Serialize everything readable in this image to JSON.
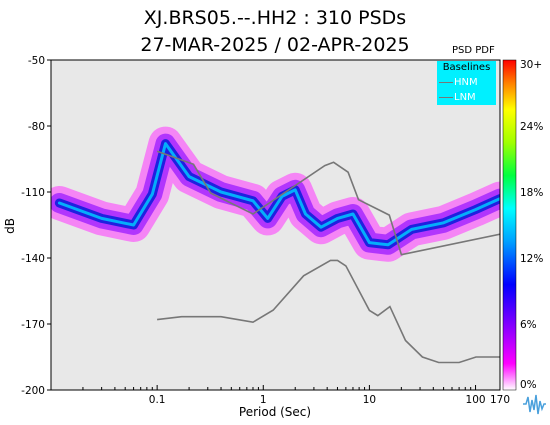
{
  "title_line1": "XJ.BRS05.--.HH2 : 310 PSDs",
  "title_line2": "27-MAR-2025 / 02-APR-2025",
  "colorbar": {
    "title": "PSD PDF",
    "ticks": [
      "30+",
      "24%",
      "18%",
      "12%",
      "6%",
      "0%"
    ]
  },
  "legend": {
    "title": "Baselines",
    "items": [
      "HNM",
      "LNM"
    ],
    "background": "#00f0ff",
    "line_color": "#777777"
  },
  "chart_data": {
    "type": "heatmap",
    "xlabel": "Period (Sec)",
    "ylabel": "dB",
    "x_scale": "log",
    "xlim": [
      0.01,
      170
    ],
    "ylim": [
      -200,
      -50
    ],
    "x_ticks": [
      0.1,
      1,
      10,
      100,
      170
    ],
    "x_tick_labels": [
      "0.1",
      "1",
      "10",
      "100",
      "170"
    ],
    "y_ticks": [
      -200,
      -170,
      -140,
      -110,
      -80,
      -50
    ],
    "y_tick_labels": [
      "-200",
      "-170",
      "-140",
      "-110",
      "-80",
      "-50"
    ],
    "grid": false,
    "legend_position": "top-right",
    "background_color": "#e8e8e8",
    "series": [
      {
        "name": "HNM",
        "x": [
          0.1,
          0.22,
          0.32,
          0.8,
          3.8,
          4.6,
          6.3,
          7.9,
          15.4,
          20,
          354
        ],
        "y": [
          -91.5,
          -97.4,
          -110.5,
          -120,
          -98,
          -96.5,
          -101,
          -113.5,
          -120.5,
          -138.5,
          -126
        ]
      },
      {
        "name": "LNM",
        "x": [
          0.1,
          0.17,
          0.4,
          0.8,
          1.24,
          2.4,
          4.3,
          5,
          6,
          10,
          12,
          15.6,
          21.9,
          31.6,
          45,
          70,
          101,
          154,
          328
        ],
        "y": [
          -168,
          -166.7,
          -166.7,
          -169.2,
          -163.7,
          -148.1,
          -141.1,
          -141.1,
          -143.6,
          -163.8,
          -166.2,
          -162.1,
          -177.5,
          -185,
          -187.5,
          -187.5,
          -185,
          -185,
          -185
        ]
      }
    ],
    "pdf_mode_curve": {
      "x": [
        0.012,
        0.03,
        0.06,
        0.09,
        0.12,
        0.2,
        0.4,
        0.8,
        1.1,
        1.5,
        2,
        2.5,
        3.5,
        5,
        7,
        10,
        15,
        25,
        50,
        100,
        170
      ],
      "y": [
        -115,
        -122,
        -125,
        -111,
        -88,
        -103,
        -110,
        -114,
        -122,
        -112,
        -109,
        -120,
        -126,
        -122,
        -120,
        -133,
        -134,
        -127,
        -124,
        -118,
        -113
      ]
    }
  }
}
